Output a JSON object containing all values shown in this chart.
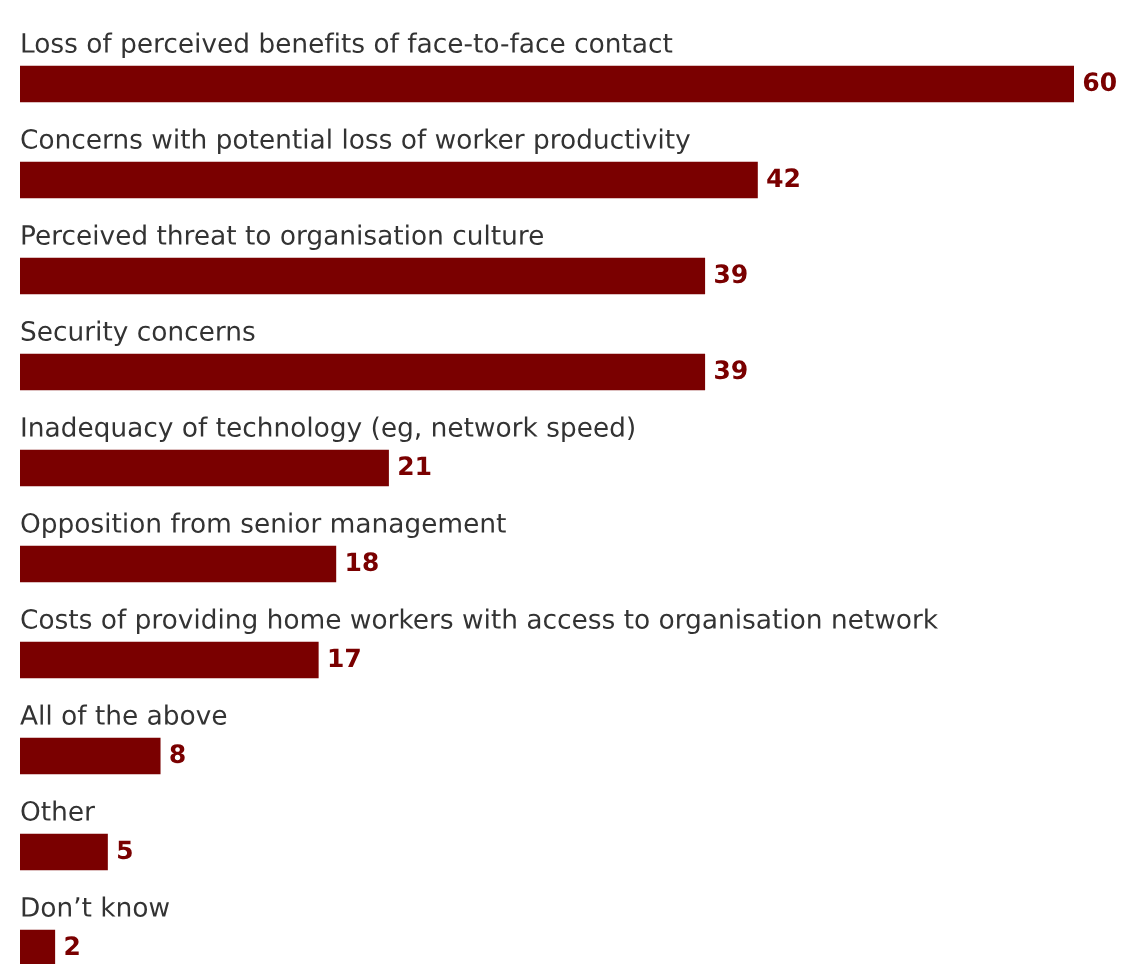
{
  "chart_data": {
    "type": "bar",
    "orientation": "horizontal",
    "data_labels": true,
    "color": "#7a0000",
    "categories": [
      "Loss of perceived benefits of face-to-face contact",
      "Concerns with potential loss of worker productivity",
      "Perceived threat to organisation culture",
      "Security concerns",
      "Inadequacy of technology (eg, network speed)",
      "Opposition from senior management",
      "Costs of providing home workers with access to organisation network",
      "All of the above",
      "Other",
      "Don’t know"
    ],
    "values": [
      60,
      42,
      39,
      39,
      21,
      18,
      17,
      8,
      5,
      2
    ]
  }
}
